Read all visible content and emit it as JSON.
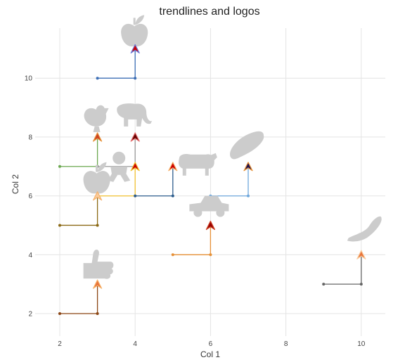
{
  "chart_data": {
    "type": "scatter",
    "title": "trendlines and logos",
    "xlabel": "Col 1",
    "ylabel": "Col 2",
    "xlim": [
      1.3,
      10.7
    ],
    "ylim": [
      1.1,
      11.8
    ],
    "xticks": [
      2,
      4,
      6,
      8,
      10
    ],
    "yticks": [
      2,
      4,
      6,
      8,
      10
    ],
    "grid": true,
    "segments": [
      {
        "from": [
          2,
          2
        ],
        "to": [
          3,
          3
        ],
        "color": "#8b4513"
      },
      {
        "from": [
          2,
          5
        ],
        "to": [
          3,
          6
        ],
        "color": "#8b6914"
      },
      {
        "from": [
          2,
          7
        ],
        "to": [
          3,
          8
        ],
        "color": "#6aa84f"
      },
      {
        "from": [
          3,
          6
        ],
        "to": [
          4,
          7
        ],
        "color": "#f1c232"
      },
      {
        "from": [
          3,
          7
        ],
        "to": [
          4,
          8
        ],
        "color": "#999999"
      },
      {
        "from": [
          3,
          10
        ],
        "to": [
          4,
          11
        ],
        "color": "#3d6fb6"
      },
      {
        "from": [
          4,
          6
        ],
        "to": [
          5,
          7
        ],
        "color": "#2f5e8e"
      },
      {
        "from": [
          5,
          4
        ],
        "to": [
          6,
          5
        ],
        "color": "#e69138"
      },
      {
        "from": [
          6,
          6
        ],
        "to": [
          7,
          7
        ],
        "color": "#6fa8dc"
      },
      {
        "from": [
          9,
          3
        ],
        "to": [
          10,
          4
        ],
        "color": "#666666"
      }
    ],
    "markers": [
      {
        "x": 3,
        "y": 3,
        "fill": "#e8743b",
        "edge": "#f6b26b"
      },
      {
        "x": 3,
        "y": 6,
        "fill": "#f9cb9c",
        "edge": "#f6b26b"
      },
      {
        "x": 3,
        "y": 8,
        "fill": "#cc4125",
        "edge": "#e69138"
      },
      {
        "x": 4,
        "y": 7,
        "fill": "#cc0000",
        "edge": "#f1c232"
      },
      {
        "x": 4,
        "y": 8,
        "fill": "#660000",
        "edge": "#e06666"
      },
      {
        "x": 4,
        "y": 11,
        "fill": "#cc0000",
        "edge": "#6d78d6"
      },
      {
        "x": 5,
        "y": 7,
        "fill": "#cc0000",
        "edge": "#f6b26b"
      },
      {
        "x": 6,
        "y": 5,
        "fill": "#990000",
        "edge": "#cc4125"
      },
      {
        "x": 7,
        "y": 7,
        "fill": "#20124d",
        "edge": "#e69138"
      },
      {
        "x": 10,
        "y": 4,
        "fill": "#e8743b",
        "edge": "#f9cb9c"
      }
    ],
    "logos": [
      {
        "name": "apple-icon",
        "x": 4,
        "y": 11
      },
      {
        "name": "chicken-icon",
        "x": 3,
        "y": 8
      },
      {
        "name": "elephant-icon",
        "x": 4,
        "y": 8
      },
      {
        "name": "baby-icon",
        "x": 4,
        "y": 7
      },
      {
        "name": "apple-icon",
        "x": 3,
        "y": 6
      },
      {
        "name": "cow-icon",
        "x": 5,
        "y": 7
      },
      {
        "name": "bread-icon",
        "x": 7,
        "y": 7
      },
      {
        "name": "car-icon",
        "x": 6,
        "y": 5
      },
      {
        "name": "thumbs-up-icon",
        "x": 3,
        "y": 3
      },
      {
        "name": "banana-icon",
        "x": 10,
        "y": 4
      }
    ]
  }
}
